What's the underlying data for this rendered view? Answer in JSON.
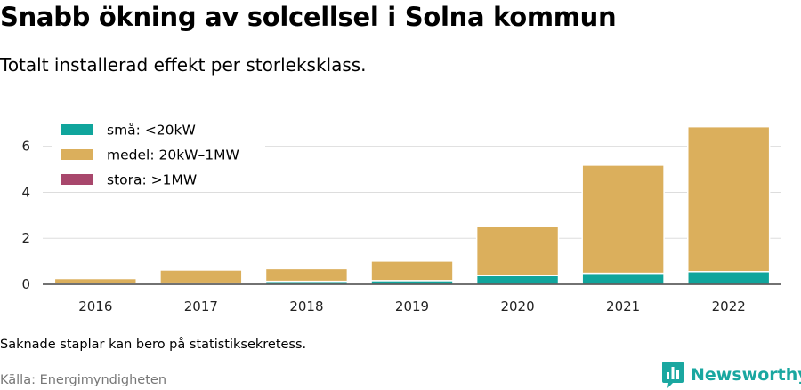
{
  "header": {
    "title": "Snabb ökning av solcellsel i Solna kommun",
    "subtitle": "Totalt installerad effekt per storleksklass."
  },
  "footer": {
    "note": "Saknade staplar kan bero på statistiksekretess.",
    "source": "Källa: Energimyndigheten",
    "brand": "Newsworthy"
  },
  "colors": {
    "sma": "#10a59c",
    "medel": "#dbaf5c",
    "stora": "#a8476c",
    "grid": "#dddddd",
    "brand": "#1aa7a0"
  },
  "chart_data": {
    "type": "bar",
    "stacked": true,
    "categories": [
      "2016",
      "2017",
      "2018",
      "2019",
      "2020",
      "2021",
      "2022"
    ],
    "series": [
      {
        "name": "små: <20kW",
        "color": "#10a59c",
        "values": [
          0.02,
          0.05,
          0.13,
          0.16,
          0.38,
          0.48,
          0.55
        ]
      },
      {
        "name": "medel: 20kW–1MW",
        "color": "#dbaf5c",
        "values": [
          0.23,
          0.57,
          0.55,
          0.85,
          2.15,
          4.7,
          6.3
        ]
      },
      {
        "name": "stora: >1MW",
        "color": "#a8476c",
        "values": [
          0,
          0,
          0,
          0,
          0,
          0,
          0
        ]
      }
    ],
    "yticks": [
      0,
      2,
      4,
      6
    ],
    "ylim": [
      0,
      7.3
    ],
    "grid": true,
    "legend_position": "top-left"
  }
}
